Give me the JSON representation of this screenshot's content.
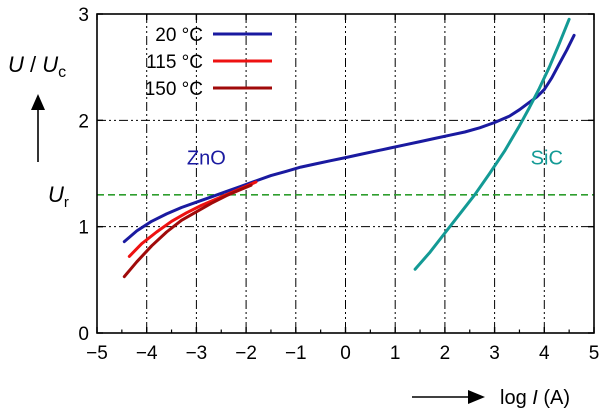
{
  "chart_data": {
    "type": "line",
    "title": "",
    "xlabel": {
      "prefix": "log",
      "variable": "I",
      "unit": "(A)"
    },
    "ylabel": {
      "variable_num": "U",
      "sep": "/",
      "variable_den": "U",
      "subscript": "c"
    },
    "xlim": [
      -5,
      5
    ],
    "ylim": [
      0,
      3
    ],
    "xticks": [
      -5,
      -4,
      -3,
      -2,
      -1,
      0,
      1,
      2,
      3,
      4,
      5
    ],
    "xtick_labels": [
      "−5",
      "−4",
      "−3",
      "−2",
      "−1",
      "0",
      "1",
      "2",
      "3",
      "4",
      "5"
    ],
    "yticks": [
      0,
      1,
      2,
      3
    ],
    "ytick_labels": [
      "0",
      "1",
      "2",
      "3"
    ],
    "grid": true,
    "legend": "top-left",
    "reference_line": {
      "y": 1.3,
      "label_main": "U",
      "label_sub": "r",
      "color": "#2e9e2e"
    },
    "series": [
      {
        "name": "20 °C",
        "color": "#1a1aa0",
        "x": [
          -4.45,
          -4.2,
          -3.9,
          -3.6,
          -3.3,
          -3.0,
          -2.7,
          -2.4,
          -2.1,
          -1.8,
          -1.5,
          -1.2,
          -0.9,
          -0.6,
          -0.3,
          0.0,
          0.3,
          0.6,
          0.9,
          1.2,
          1.5,
          1.8,
          2.1,
          2.4,
          2.7,
          3.0,
          3.3,
          3.5,
          3.7,
          3.85,
          4.0,
          4.15,
          4.3,
          4.45,
          4.6
        ],
        "y": [
          0.86,
          0.96,
          1.05,
          1.12,
          1.18,
          1.23,
          1.28,
          1.33,
          1.38,
          1.43,
          1.48,
          1.52,
          1.56,
          1.59,
          1.62,
          1.65,
          1.68,
          1.71,
          1.74,
          1.77,
          1.8,
          1.83,
          1.86,
          1.89,
          1.93,
          1.98,
          2.04,
          2.1,
          2.17,
          2.22,
          2.29,
          2.4,
          2.53,
          2.66,
          2.8
        ]
      },
      {
        "name": "115 °C",
        "color": "#ee1111",
        "x": [
          -4.35,
          -4.1,
          -3.8,
          -3.5,
          -3.2,
          -2.9,
          -2.6,
          -2.3,
          -2.0,
          -1.8
        ],
        "y": [
          0.72,
          0.84,
          0.95,
          1.05,
          1.13,
          1.2,
          1.26,
          1.32,
          1.38,
          1.42
        ]
      },
      {
        "name": "150 °C",
        "color": "#a00a0a",
        "x": [
          -4.45,
          -4.2,
          -3.9,
          -3.6,
          -3.3,
          -3.0,
          -2.7,
          -2.4,
          -2.1,
          -1.9
        ],
        "y": [
          0.53,
          0.67,
          0.82,
          0.95,
          1.06,
          1.14,
          1.22,
          1.29,
          1.35,
          1.39
        ]
      },
      {
        "name": "",
        "color": "#139a95",
        "x": [
          1.4,
          1.7,
          2.0,
          2.3,
          2.6,
          2.9,
          3.2,
          3.5,
          3.7,
          3.9,
          4.1,
          4.3,
          4.5
        ],
        "y": [
          0.6,
          0.76,
          0.94,
          1.12,
          1.3,
          1.5,
          1.71,
          1.95,
          2.12,
          2.3,
          2.5,
          2.72,
          2.95
        ]
      }
    ],
    "annotations": [
      {
        "id": "zno",
        "text": "ZnO",
        "x": -2.8,
        "y": 1.65,
        "color": "#1a1aa0"
      },
      {
        "id": "sic",
        "text": "SiC",
        "x": 4.05,
        "y": 1.65,
        "color": "#139a95"
      }
    ]
  }
}
